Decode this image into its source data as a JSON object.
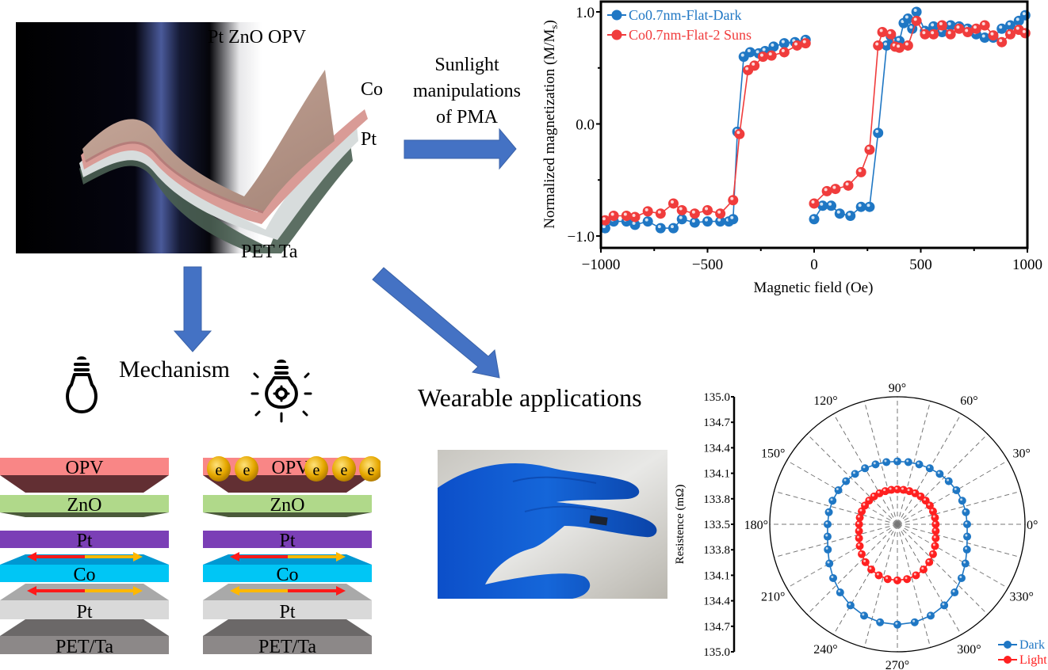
{
  "top_photo": {
    "labels": {
      "top": "Pt  ZnO  OPV",
      "co": "Co",
      "pt": "Pt",
      "bottom": "PET Ta"
    }
  },
  "flow": {
    "sunlight_label": [
      "Sunlight",
      "manipulations",
      "of PMA"
    ],
    "mechanism_label": "Mechanism",
    "wearable_label": "Wearable applications",
    "arrow_color": "#4472c4"
  },
  "stacks": {
    "left": {
      "state": "dark",
      "layers": [
        "OPV",
        "ZnO",
        "Pt",
        "Co",
        "Pt",
        "PET/Ta"
      ]
    },
    "right": {
      "state": "light",
      "layers": [
        "OPV",
        "ZnO",
        "Pt",
        "Co",
        "Pt",
        "PET/Ta"
      ],
      "electron_label": "e",
      "electron_count": 5
    },
    "colors": {
      "opv": "#f98686",
      "opv_side": "#622f33",
      "zno": "#b0d98a",
      "zno_side": "#4b5a3a",
      "pt_top": "#7b3fb6",
      "co_front": "#00c6f5",
      "co_top": "#0098d2",
      "pt_front": "#d9d9d9",
      "pt_side": "#a9a9a9",
      "pet_front": "#8c8888",
      "pet_side": "#6b6868",
      "arrow_red": "#ff1a1a",
      "arrow_yellow": "#ffb800",
      "electron": "#e6a800"
    }
  },
  "chart_data": [
    {
      "type": "line",
      "title": "",
      "xlabel": "Magnetic field (Oe)",
      "ylabel": "Normalized magnetization (M/M",
      "ylabel_sub": "s",
      "ylabel_close": ")",
      "xlim": [
        -1000,
        1000
      ],
      "ylim": [
        -1.06,
        1.06
      ],
      "xticks": [
        -1000,
        -500,
        0,
        500,
        1000
      ],
      "xtick_labels": [
        "−1000",
        "−500",
        "0",
        "500",
        "1000"
      ],
      "yticks": [
        1.0,
        0.0,
        -1.0
      ],
      "ytick_labels": [
        "1.0",
        "0.0",
        "−1.0"
      ],
      "legend_position": "top-left",
      "series": [
        {
          "name": "Co0.7nm-Flat-Dark",
          "color": "#1f77c4",
          "x": [
            -980,
            -940,
            -880,
            -840,
            -780,
            -720,
            -660,
            -620,
            -560,
            -500,
            -440,
            -400,
            -380,
            -360,
            -330,
            -300,
            -260,
            -230,
            -190,
            -140,
            -90,
            -40,
            0,
            40,
            80,
            120,
            170,
            220,
            260,
            300,
            340,
            360,
            380,
            400,
            420,
            440,
            460,
            480,
            520,
            560,
            600,
            640,
            680,
            720,
            760,
            800,
            840,
            880,
            920,
            960,
            990
          ],
          "y": [
            -0.93,
            -0.87,
            -0.87,
            -0.9,
            -0.87,
            -0.93,
            -0.93,
            -0.85,
            -0.88,
            -0.87,
            -0.87,
            -0.87,
            -0.85,
            -0.07,
            0.6,
            0.64,
            0.63,
            0.65,
            0.69,
            0.72,
            0.73,
            0.75,
            -0.85,
            -0.73,
            -0.73,
            -0.8,
            -0.82,
            -0.74,
            -0.74,
            -0.08,
            0.7,
            0.78,
            0.73,
            0.74,
            0.9,
            0.94,
            0.85,
            1.0,
            0.83,
            0.87,
            0.82,
            0.88,
            0.87,
            0.85,
            0.8,
            0.77,
            0.77,
            0.85,
            0.88,
            0.92,
            0.97
          ],
          "branch_break_index": 22
        },
        {
          "name": "Co0.7nm-Flat-2 Suns",
          "color": "#f03c3c",
          "x": [
            -980,
            -940,
            -880,
            -840,
            -780,
            -720,
            -660,
            -620,
            -560,
            -500,
            -440,
            -380,
            -350,
            -310,
            -280,
            -240,
            -200,
            -140,
            -80,
            -40,
            0,
            60,
            100,
            160,
            220,
            260,
            300,
            320,
            360,
            380,
            400,
            440,
            480,
            520,
            560,
            600,
            640,
            680,
            720,
            760,
            800,
            840,
            880,
            920,
            960,
            990
          ],
          "y": [
            -0.86,
            -0.82,
            -0.82,
            -0.83,
            -0.78,
            -0.8,
            -0.71,
            -0.77,
            -0.8,
            -0.77,
            -0.8,
            -0.68,
            -0.09,
            0.48,
            0.52,
            0.6,
            0.61,
            0.64,
            0.7,
            0.72,
            -0.71,
            -0.6,
            -0.58,
            -0.55,
            -0.43,
            -0.23,
            0.7,
            0.82,
            0.8,
            0.69,
            0.68,
            0.7,
            0.92,
            0.8,
            0.8,
            0.88,
            0.8,
            0.85,
            0.82,
            0.85,
            0.88,
            0.79,
            0.73,
            0.8,
            0.84,
            0.81
          ],
          "branch_break_index": 20
        }
      ]
    },
    {
      "type": "polar",
      "title": "",
      "rlabel": "Resistence (mΩ)",
      "r_center_value": 133.5,
      "r_edge_value": 135.0,
      "rtick_labels": [
        "135.0",
        "134.7",
        "134.4",
        "134.1",
        "133.8",
        "133.5",
        "133.8",
        "134.1",
        "134.4",
        "134.7",
        "135.0"
      ],
      "angle_labels": [
        "0°",
        "30°",
        "60°",
        "90°",
        "120°",
        "150°",
        "180°",
        "210°",
        "240°",
        "270°",
        "300°",
        "330°"
      ],
      "angles": [
        0,
        30,
        60,
        90,
        120,
        150,
        180,
        210,
        240,
        270,
        300,
        330
      ],
      "gridlines_every_deg": 15,
      "legend_position": "bottom-right",
      "series": [
        {
          "name": "Dark",
          "color": "#1f77c4",
          "points": 36,
          "r_up": 134.24,
          "r_down": 134.68,
          "r_side": 134.32
        },
        {
          "name": "Light",
          "color": "#ff2020",
          "points": 36,
          "r_up": 133.91,
          "r_down": 134.16,
          "r_side": 133.95
        }
      ]
    }
  ]
}
